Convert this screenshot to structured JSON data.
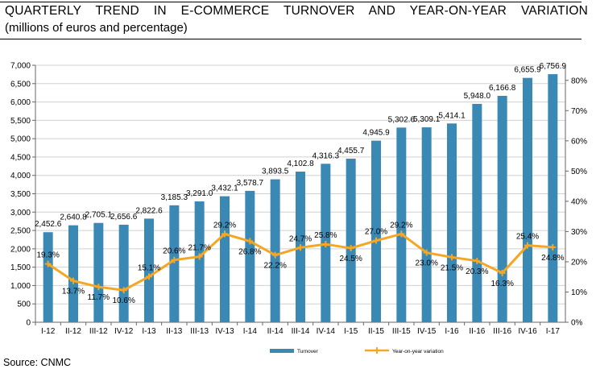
{
  "header": {
    "title": "QUARTERLY TREND IN E-COMMERCE TURNOVER AND YEAR-ON-YEAR VARIATION",
    "subtitle": "(millions of euros and percentage)"
  },
  "footer": {
    "source": "Source: CNMC"
  },
  "colors": {
    "bars": "#3a88b4",
    "line": "#f5a623",
    "grid": "#d0d0d0"
  },
  "chart_data": {
    "type": "bar",
    "categories": [
      "I-12",
      "II-12",
      "III-12",
      "IV-12",
      "I-13",
      "II-13",
      "III-13",
      "IV-13",
      "I-14",
      "II-14",
      "III-14",
      "IV-14",
      "I-15",
      "II-15",
      "III-15",
      "IV-15",
      "I-16",
      "II-16",
      "III-16",
      "IV-16",
      "I-17"
    ],
    "series": [
      {
        "name": "Turnover",
        "type": "bar",
        "axis": "left",
        "values": [
          2452.6,
          2640.8,
          2705.1,
          2656.6,
          2822.6,
          3185.3,
          3291.0,
          3432.1,
          3578.7,
          3893.5,
          4102.8,
          4316.3,
          4455.7,
          4945.9,
          5302.6,
          5309.1,
          5414.1,
          5948.0,
          6166.8,
          6655.9,
          6756.9
        ],
        "labels": [
          "2,452.6",
          "2,640.8",
          "2,705.1",
          "2,656.6",
          "2,822.6",
          "3,185.3",
          "3,291.0",
          "3,432.1",
          "3,578.7",
          "3,893.5",
          "4,102.8",
          "4,316.3",
          "4,455.7",
          "4,945.9",
          "5,302.6",
          "5,309.1",
          "5,414.1",
          "5,948.0",
          "6,166.8",
          "6,655.9",
          "6,756.9"
        ]
      },
      {
        "name": "Year-on-year variation",
        "type": "line",
        "axis": "right",
        "values": [
          19.3,
          13.7,
          11.7,
          10.6,
          15.1,
          20.6,
          21.7,
          29.2,
          26.8,
          22.2,
          24.7,
          25.8,
          24.5,
          27.0,
          29.2,
          23.0,
          21.5,
          20.3,
          16.3,
          25.4,
          24.8
        ],
        "labels": [
          "19.3%",
          "13.7%",
          "11.7%",
          "10.6%",
          "15.1%",
          "20.6%",
          "21.7%",
          "29.2%",
          "26.8%",
          "22.2%",
          "24.7%",
          "25.8%",
          "24.5%",
          "27.0%",
          "29.2%",
          "23.0%",
          "21.5%",
          "20.3%",
          "16.3%",
          "25.4%",
          "24.8%"
        ]
      }
    ],
    "yleft": {
      "range": [
        0,
        7000
      ],
      "ticks": [
        0,
        500,
        1000,
        1500,
        2000,
        2500,
        3000,
        3500,
        4000,
        4500,
        5000,
        5500,
        6000,
        6500,
        7000
      ],
      "tick_labels": [
        "0",
        "500",
        "1,000",
        "1,500",
        "2,000",
        "2,500",
        "3,000",
        "3,500",
        "4,000",
        "4,500",
        "5,000",
        "5,500",
        "6,000",
        "6,500",
        "7,000"
      ]
    },
    "yright": {
      "range": [
        0,
        85
      ],
      "ticks": [
        0,
        10,
        20,
        30,
        40,
        50,
        60,
        70,
        80
      ],
      "tick_labels": [
        "0%",
        "10%",
        "20%",
        "30%",
        "40%",
        "50%",
        "60%",
        "70%",
        "80%"
      ]
    },
    "grid": true,
    "legend": "bottom-center"
  }
}
